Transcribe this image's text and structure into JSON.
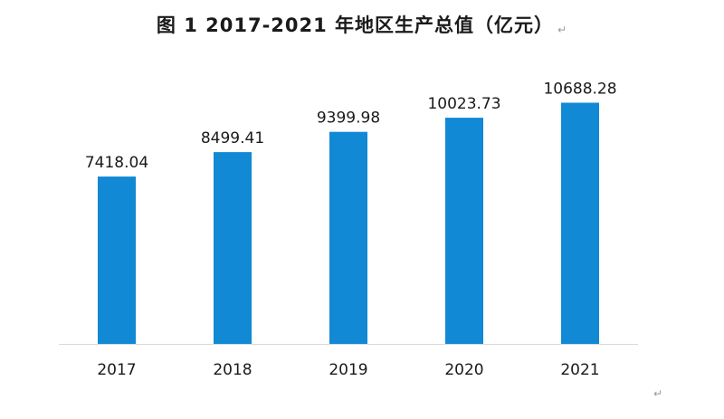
{
  "chart_data": {
    "type": "bar",
    "title": "图 1  2017-2021 年地区生产总值（亿元）",
    "categories": [
      "2017",
      "2018",
      "2019",
      "2020",
      "2021"
    ],
    "values": [
      7418.04,
      8499.41,
      9399.98,
      10023.73,
      10688.28
    ],
    "data_labels": [
      "7418.04",
      "8499.41",
      "9399.98",
      "10023.73",
      "10688.28"
    ],
    "xlabel": "",
    "ylabel": "",
    "ylim": [
      0,
      12000
    ],
    "grid": false,
    "legend": "none",
    "bar_color": "#1189D4",
    "axis_color": "#D9D9D9"
  },
  "marks": {
    "paragraph": "↵"
  }
}
